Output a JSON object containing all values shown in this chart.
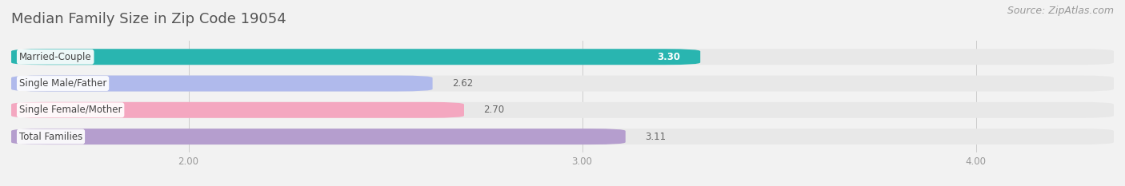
{
  "title": "Median Family Size in Zip Code 19054",
  "source": "Source: ZipAtlas.com",
  "categories": [
    "Married-Couple",
    "Single Male/Father",
    "Single Female/Mother",
    "Total Families"
  ],
  "values": [
    3.3,
    2.62,
    2.7,
    3.11
  ],
  "value_labels": [
    "3.30",
    "2.62",
    "2.70",
    "3.11"
  ],
  "bar_colors": [
    "#29b5b0",
    "#b0baec",
    "#f4a7c0",
    "#b59ece"
  ],
  "bar_bg_color": "#e8e8e8",
  "xlim_left": 1.55,
  "xlim_right": 4.35,
  "xticks": [
    2.0,
    3.0,
    4.0
  ],
  "xtick_labels": [
    "2.00",
    "3.00",
    "4.00"
  ],
  "title_fontsize": 13,
  "source_fontsize": 9,
  "bar_label_fontsize": 8.5,
  "value_label_fontsize": 8.5,
  "background_color": "#f2f2f2",
  "bar_height": 0.6,
  "value_inside_bar": [
    true,
    false,
    false,
    false
  ],
  "value_inside_color": [
    "#ffffff",
    "#666666",
    "#666666",
    "#666666"
  ]
}
